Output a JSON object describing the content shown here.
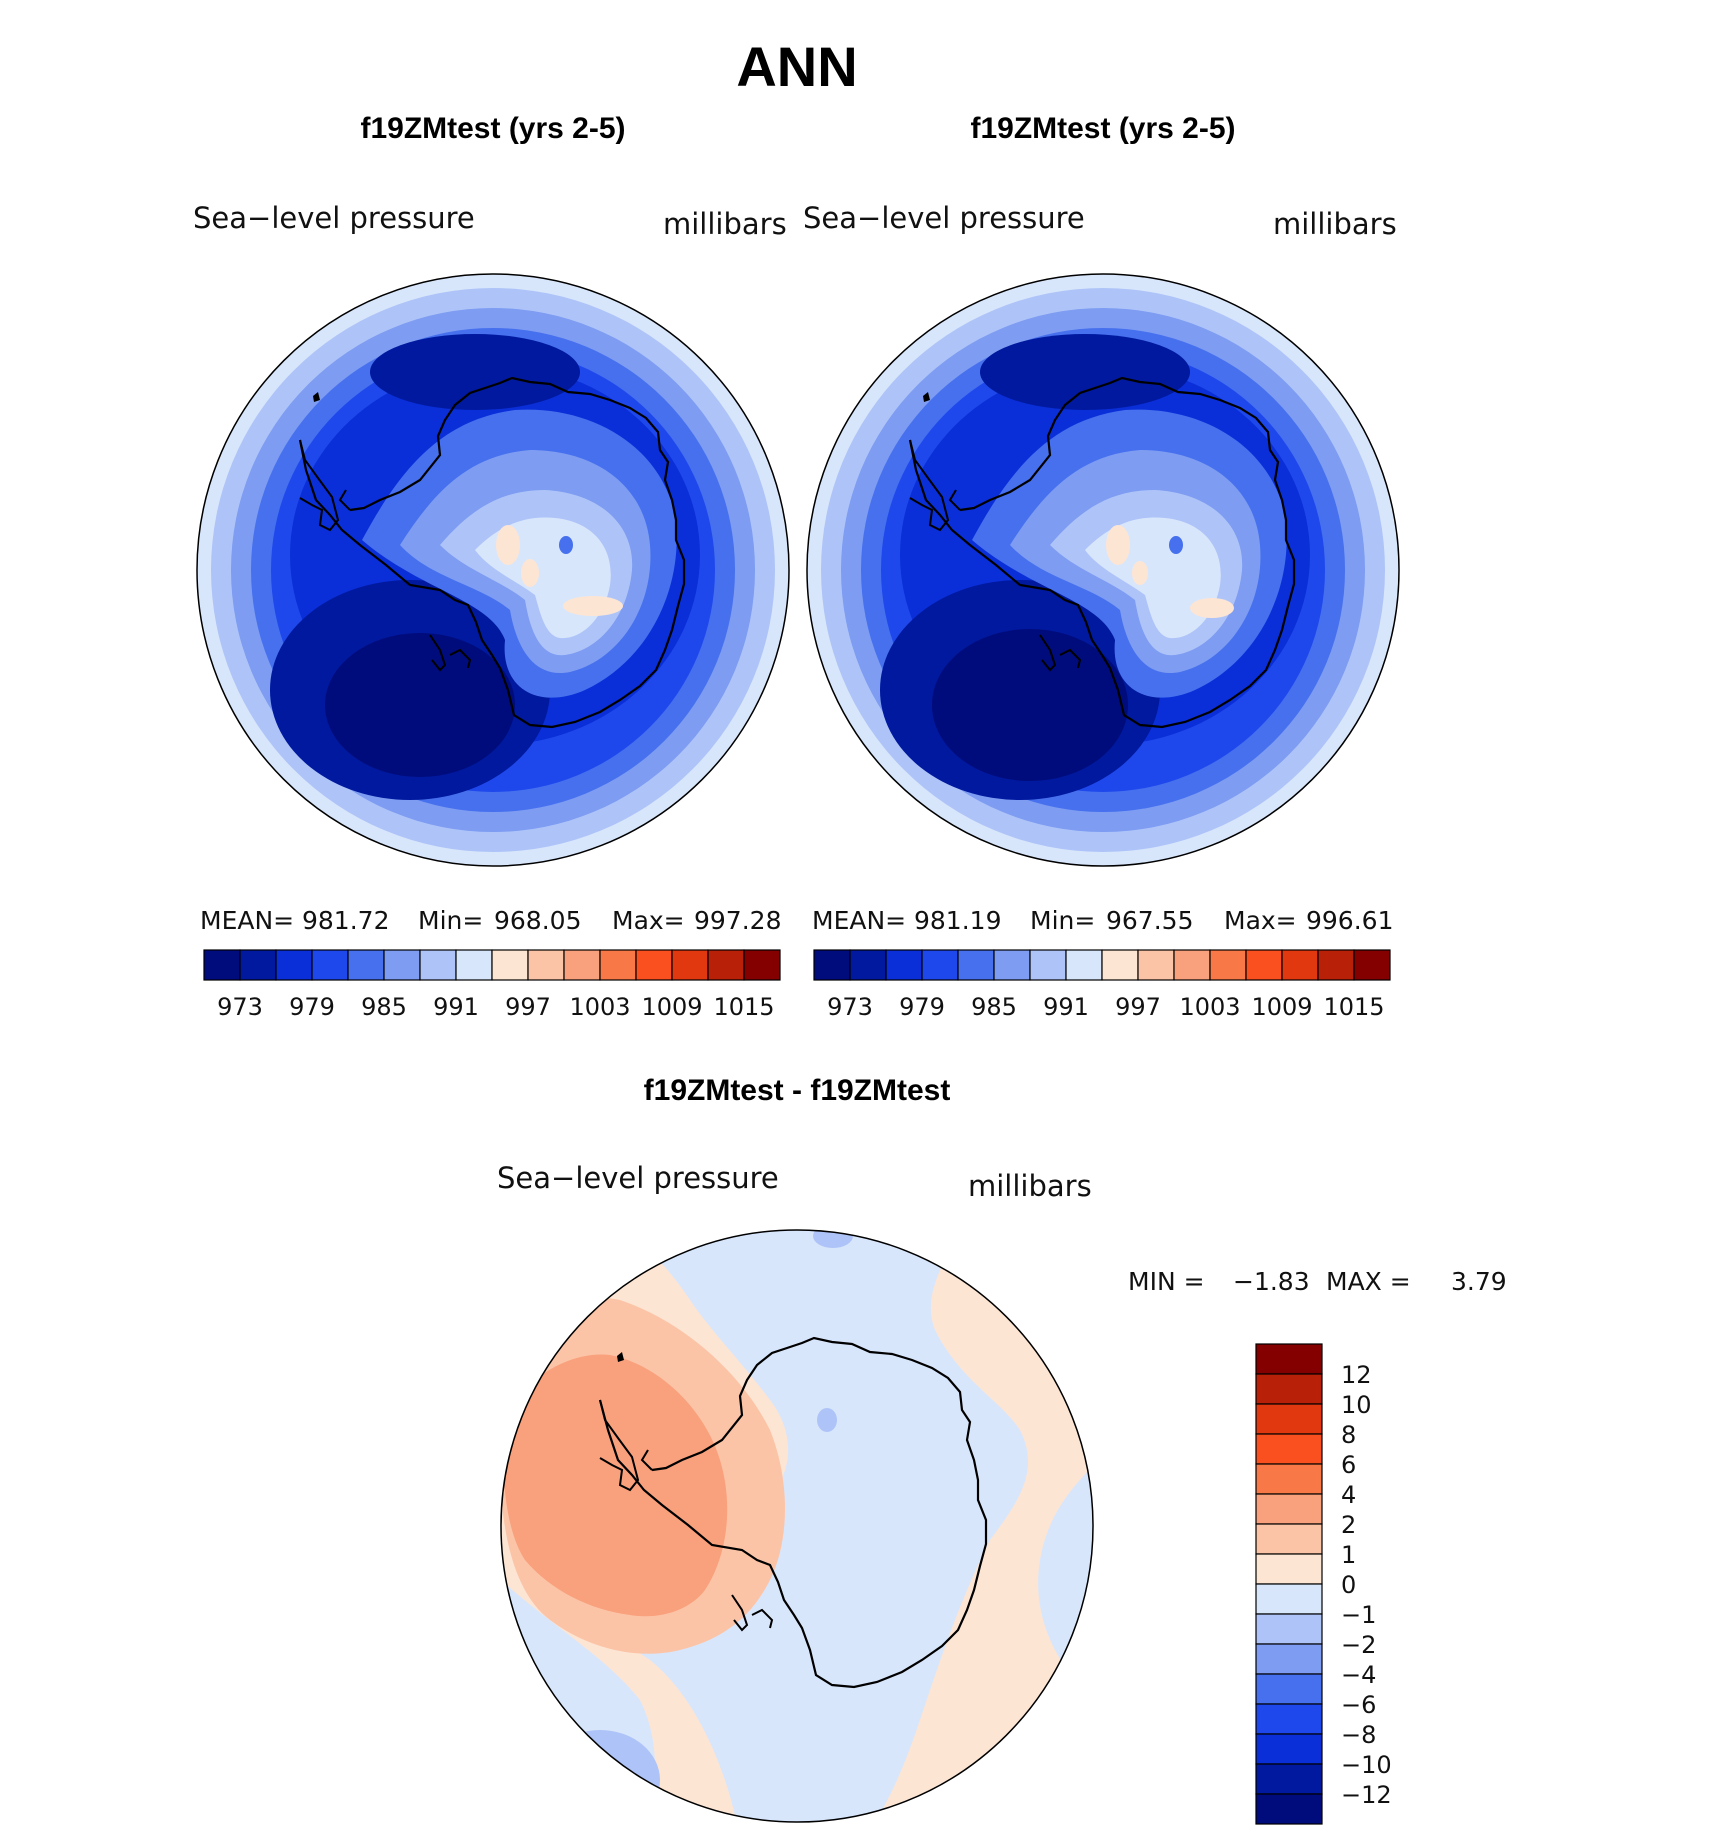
{
  "chart_data": [
    {
      "type": "heatmap",
      "panel": "top-left",
      "title": "f19ZMtest (yrs 2-5)",
      "variable": "Sea−level pressure",
      "units": "millibars",
      "stats": {
        "mean_label": "MEAN=",
        "mean": "981.72",
        "min_label": "Min=",
        "min": "968.05",
        "max_label": "Max=",
        "max": "997.28"
      },
      "levels": [
        970,
        973,
        976,
        979,
        982,
        985,
        988,
        991,
        994,
        997,
        1000,
        1003,
        1006,
        1009,
        1012,
        1015
      ],
      "tick_labels": [
        "973",
        "979",
        "985",
        "991",
        "997",
        "1003",
        "1009",
        "1015"
      ]
    },
    {
      "type": "heatmap",
      "panel": "top-right",
      "title": "f19ZMtest (yrs 2-5)",
      "variable": "Sea−level pressure",
      "units": "millibars",
      "stats": {
        "mean_label": "MEAN=",
        "mean": "981.19",
        "min_label": "Min=",
        "min": "967.55",
        "max_label": "Max=",
        "max": "996.61"
      },
      "levels": [
        970,
        973,
        976,
        979,
        982,
        985,
        988,
        991,
        994,
        997,
        1000,
        1003,
        1006,
        1009,
        1012,
        1015
      ],
      "tick_labels": [
        "973",
        "979",
        "985",
        "991",
        "997",
        "1003",
        "1009",
        "1015"
      ]
    },
    {
      "type": "heatmap",
      "panel": "bottom-difference",
      "title": "f19ZMtest - f19ZMtest",
      "variable": "Sea−level pressure",
      "units": "millibars",
      "stats": {
        "min_label": "MIN =",
        "min": "−1.83",
        "max_label": "MAX =",
        "max": "3.79"
      },
      "levels": [
        -12,
        -10,
        -8,
        -6,
        -4,
        -2,
        -1,
        0,
        1,
        2,
        4,
        6,
        8,
        10,
        12
      ],
      "tick_labels": [
        "12",
        "10",
        "8",
        "6",
        "4",
        "2",
        "1",
        "0",
        "−1",
        "−2",
        "−4",
        "−6",
        "−8",
        "−10",
        "−12"
      ]
    }
  ],
  "page": {
    "main_title": "ANN"
  },
  "colors": {
    "abs_palette": [
      "#000c7c",
      "#00199e",
      "#0a2fd8",
      "#1e48ec",
      "#4670ee",
      "#7d9cf2",
      "#aec4f8",
      "#d8e6fb",
      "#fde5d4",
      "#fcc4a7",
      "#f9a07c",
      "#f87848",
      "#fa5020",
      "#e23810",
      "#b82008",
      "#840000"
    ],
    "diff_palette_top_down": [
      "#840000",
      "#b82008",
      "#e23810",
      "#fa5020",
      "#f87848",
      "#f9a07c",
      "#fcc4a7",
      "#fde5d4",
      "#d8e6fb",
      "#aec4f8",
      "#7d9cf2",
      "#4670ee",
      "#1e48ec",
      "#0a2fd8",
      "#00199e",
      "#000c7c"
    ]
  }
}
